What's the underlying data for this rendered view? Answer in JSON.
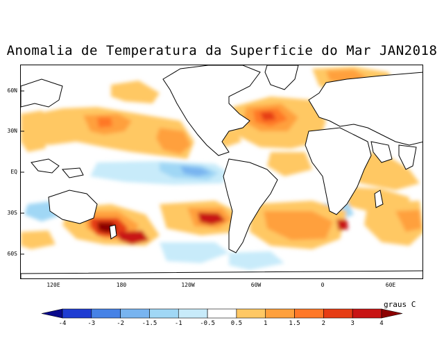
{
  "title": "Anomalia de Temperatura da Superficie do Mar JAN2018",
  "latitude_labels": [
    "60N",
    "30N",
    "EQ",
    "30S",
    "60S"
  ],
  "longitude_labels": [
    "120E",
    "180",
    "120W",
    "60W",
    "0",
    "60E"
  ],
  "colorbar": {
    "units": "graus C",
    "tick_labels": [
      "-4",
      "-3",
      "-2",
      "-1.5",
      "-1",
      "-0.5",
      "0.5",
      "1",
      "1.5",
      "2",
      "3",
      "4"
    ],
    "colors": [
      "#0a0a8c",
      "#1e3cd2",
      "#4682e6",
      "#78b4f0",
      "#a0d7f5",
      "#c8ebfa",
      "#ffffff",
      "#ffc864",
      "#ffa03c",
      "#ff7828",
      "#e63c14",
      "#c81414",
      "#8c0000"
    ]
  },
  "chart_data": {
    "type": "map",
    "title": "Anomalia de Temperatura da Superficie do Mar JAN2018",
    "variable": "sea surface temperature anomaly",
    "units": "graus C",
    "period": "JAN2018",
    "levels": [
      -4,
      -3,
      -2,
      -1.5,
      -1,
      -0.5,
      0.5,
      1,
      1.5,
      2,
      3,
      4
    ],
    "features": [
      {
        "name": "north-pacific-warm",
        "lon": -150,
        "lat": 30,
        "anomaly": 1.5
      },
      {
        "name": "northeast-pacific-warm",
        "lon": -130,
        "lat": 25,
        "anomaly": 1.5
      },
      {
        "name": "eastern-equatorial-pacific-cold",
        "lon": -120,
        "lat": 0,
        "anomaly": -1.5
      },
      {
        "name": "northwest-atlantic-warm",
        "lon": -55,
        "lat": 38,
        "anomaly": 3
      },
      {
        "name": "south-tasman-sea-warm",
        "lon": 165,
        "lat": -45,
        "anomaly": 3
      },
      {
        "name": "southeast-pacific-warm",
        "lon": -95,
        "lat": -35,
        "anomaly": 3
      },
      {
        "name": "south-atlantic-warm",
        "lon": -30,
        "lat": -38,
        "anomaly": 1.5
      },
      {
        "name": "south-indian-warm",
        "lon": 70,
        "lat": -35,
        "anomaly": 1
      }
    ]
  }
}
